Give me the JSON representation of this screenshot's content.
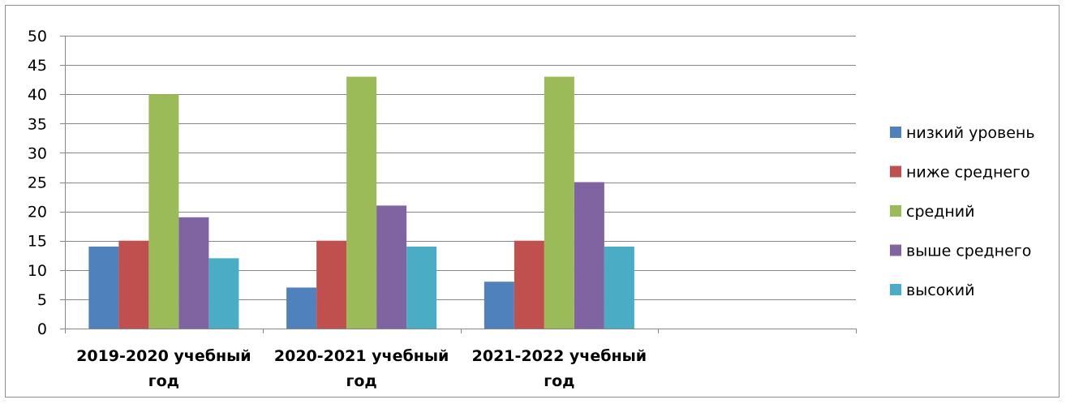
{
  "chart_data": {
    "type": "bar",
    "categories": [
      [
        "2019-2020 учебный",
        "год"
      ],
      [
        "2020-2021 учебный",
        "год"
      ],
      [
        "2021-2022 учебный",
        "год"
      ],
      [
        "",
        ""
      ]
    ],
    "series": [
      {
        "name": "низкий уровень",
        "color": "#4f81bd",
        "values": [
          14,
          7,
          8,
          null
        ]
      },
      {
        "name": "ниже среднего",
        "color": "#c0504d",
        "values": [
          15,
          15,
          15,
          null
        ]
      },
      {
        "name": "средний",
        "color": "#9bbb59",
        "values": [
          40,
          43,
          43,
          null
        ]
      },
      {
        "name": "выше среднего",
        "color": "#8064a2",
        "values": [
          19,
          21,
          25,
          null
        ]
      },
      {
        "name": "высокий",
        "color": "#4bacc6",
        "values": [
          12,
          14,
          14,
          null
        ]
      }
    ],
    "ylim": [
      0,
      50
    ],
    "ytick_step": 5,
    "yticks": [
      "0",
      "5",
      "10",
      "15",
      "20",
      "25",
      "30",
      "35",
      "40",
      "45",
      "50"
    ],
    "grid": true,
    "legend": "right"
  }
}
